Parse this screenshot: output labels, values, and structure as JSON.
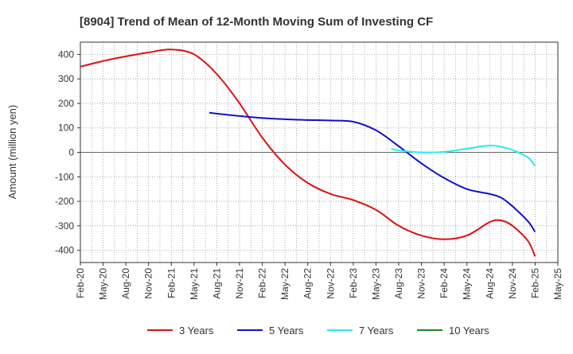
{
  "chart_data": {
    "type": "line",
    "title": "[8904]  Trend of Mean of 12-Month Moving Sum of Investing CF",
    "ylabel": "Amount (million yen)",
    "xlabel": "",
    "ylim": [
      -450,
      450
    ],
    "yticks": [
      400,
      300,
      200,
      100,
      0,
      -100,
      -200,
      -300,
      -400
    ],
    "ytick_labels": [
      "400",
      "300",
      "200",
      "100",
      "0",
      "-100",
      "-200",
      "-300",
      "-400"
    ],
    "categories": [
      "Feb-20",
      "May-20",
      "Aug-20",
      "Nov-20",
      "Feb-21",
      "May-21",
      "Aug-21",
      "Nov-21",
      "Feb-22",
      "May-22",
      "Aug-22",
      "Nov-22",
      "Feb-23",
      "May-23",
      "Aug-23",
      "Nov-23",
      "Feb-24",
      "May-24",
      "Aug-24",
      "Nov-24",
      "Feb-25",
      "May-25"
    ],
    "grid": true,
    "legend_position": "bottom",
    "series": [
      {
        "name": "3 Years",
        "color": "#dd1111",
        "points": [
          [
            0,
            350
          ],
          [
            1,
            373
          ],
          [
            2,
            392
          ],
          [
            3,
            408
          ],
          [
            4,
            420
          ],
          [
            5,
            400
          ],
          [
            6,
            320
          ],
          [
            7,
            200
          ],
          [
            8,
            60
          ],
          [
            9,
            -50
          ],
          [
            10,
            -125
          ],
          [
            11,
            -170
          ],
          [
            12,
            -195
          ],
          [
            13,
            -235
          ],
          [
            14,
            -300
          ],
          [
            15,
            -340
          ],
          [
            16,
            -355
          ],
          [
            17,
            -340
          ],
          [
            18,
            -285
          ],
          [
            18.5,
            -278
          ],
          [
            19,
            -300
          ],
          [
            19.67,
            -360
          ],
          [
            20,
            -425
          ]
        ]
      },
      {
        "name": "5 Years",
        "color": "#1111cc",
        "points": [
          [
            5.67,
            162
          ],
          [
            6,
            158
          ],
          [
            7,
            148
          ],
          [
            8,
            140
          ],
          [
            9,
            135
          ],
          [
            10,
            132
          ],
          [
            11,
            130
          ],
          [
            12,
            125
          ],
          [
            13,
            90
          ],
          [
            14,
            25
          ],
          [
            15,
            -45
          ],
          [
            16,
            -105
          ],
          [
            17,
            -150
          ],
          [
            18,
            -170
          ],
          [
            18.5,
            -185
          ],
          [
            19,
            -220
          ],
          [
            19.67,
            -280
          ],
          [
            20,
            -325
          ]
        ]
      },
      {
        "name": "7 Years",
        "color": "#22eeee",
        "points": [
          [
            13.67,
            15
          ],
          [
            14,
            8
          ],
          [
            15,
            0
          ],
          [
            16,
            2
          ],
          [
            17,
            15
          ],
          [
            18,
            28
          ],
          [
            18.5,
            22
          ],
          [
            19,
            10
          ],
          [
            19.67,
            -20
          ],
          [
            20,
            -55
          ]
        ]
      },
      {
        "name": "10 Years",
        "color": "#228822",
        "points": []
      }
    ]
  }
}
